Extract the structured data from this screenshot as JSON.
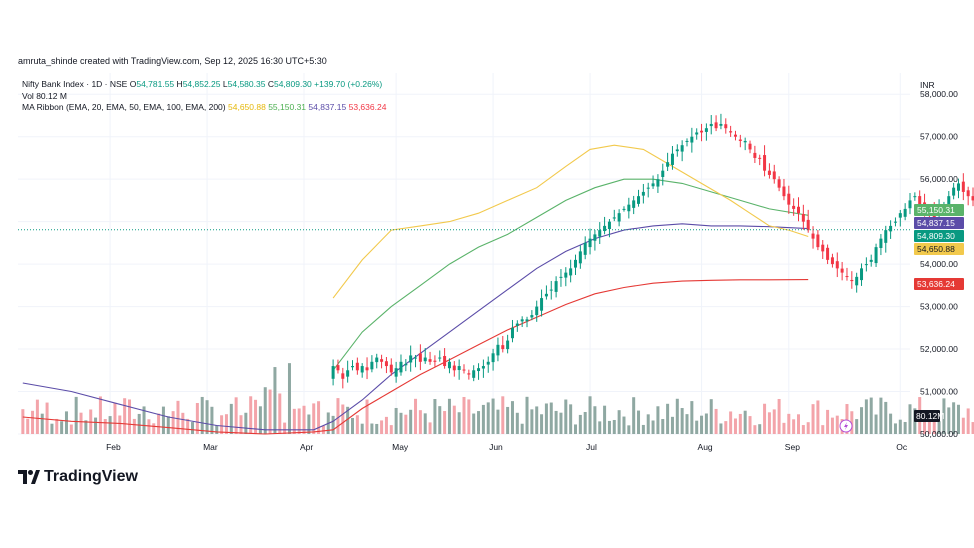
{
  "header": {
    "attribution": "amruta_shinde created with TradingView.com, Sep 12, 2025 16:30 UTC+5:30"
  },
  "legend": {
    "symbol": "Nifty Bank Index · 1D · NSE",
    "o_label": "O",
    "o_value": "54,781.55",
    "h_label": "H",
    "h_value": "54,852.25",
    "l_label": "L",
    "l_value": "54,580.35",
    "c_label": "C",
    "c_value": "54,809.30",
    "change": "+139.70 (+0.26%)",
    "volume_label": "Vol",
    "volume_value": "80.12 M",
    "ma_title": "MA Ribbon (EMA, 20, EMA, 50, EMA, 100, EMA, 200)",
    "ema20_value": "54,650.88",
    "ema50_value": "55,150.31",
    "ema100_value": "54,837.15",
    "ema200_value": "53,636.24"
  },
  "brand": {
    "name": "TradingView"
  },
  "colors": {
    "up": "#089981",
    "down": "#f23645",
    "vol_up": "#8fa8a2",
    "vol_down": "#f3a4aa",
    "ema20": "#f2c94c",
    "ema50": "#5ab36a",
    "ema100": "#5b4ca8",
    "ema200": "#e53935",
    "last_price_line": "#089981",
    "grid": "#f0f3fa",
    "axis_text": "#131722"
  },
  "chart_data": {
    "type": "candlestick",
    "title": "Nifty Bank Index · 1D · NSE",
    "currency": "INR",
    "ylim": [
      50000,
      58500
    ],
    "y_ticks": [
      50000,
      51000,
      52000,
      53000,
      54000,
      55000,
      56000,
      57000,
      58000
    ],
    "y_tick_labels": [
      "50,000.00",
      "51,000.00",
      "52,000.00",
      "53,000.00",
      "54,000.00",
      "55,000.00",
      "56,000.00",
      "57,000.00",
      "58,000.00"
    ],
    "x_ticks": [
      {
        "label": "Feb",
        "index": 18
      },
      {
        "label": "Mar",
        "index": 38
      },
      {
        "label": "Apr",
        "index": 58
      },
      {
        "label": "May",
        "index": 77
      },
      {
        "label": "Jun",
        "index": 97
      },
      {
        "label": "Jul",
        "index": 117
      },
      {
        "label": "Aug",
        "index": 140
      },
      {
        "label": "Sep",
        "index": 158
      },
      {
        "label": "Oc",
        "index": 181
      }
    ],
    "x_range": [
      -1,
      183
    ],
    "candles_start_index": 64,
    "closes": [
      51600,
      51500,
      51300,
      51500,
      51600,
      51500,
      51600,
      51500,
      51700,
      51800,
      51700,
      51600,
      51450,
      51550,
      51700,
      51650,
      51850,
      51800,
      51700,
      51800,
      51700,
      51700,
      51800,
      51600,
      51700,
      51500,
      51600,
      51500,
      51400,
      51500,
      51550,
      51600,
      51700,
      51900,
      52100,
      52000,
      52200,
      52500,
      52600,
      52700,
      52700,
      52800,
      53000,
      53200,
      53300,
      53400,
      53600,
      53700,
      53800,
      53900,
      54100,
      54300,
      54500,
      54600,
      54700,
      54800,
      54900,
      55000,
      55100,
      55200,
      55300,
      55400,
      55500,
      55600,
      55700,
      55800,
      55900,
      56000,
      56200,
      56400,
      56600,
      56700,
      56800,
      56900,
      57000,
      57100,
      57100,
      57200,
      57300,
      57200,
      57300,
      57200,
      57100,
      57000,
      56900,
      56900,
      56700,
      56500,
      56500,
      56200,
      56100,
      56000,
      55800,
      55600,
      55400,
      55300,
      55200,
      55000,
      54800,
      54600,
      54400,
      54300,
      54100,
      54000,
      53900,
      53800,
      53700,
      53600,
      53700,
      53900,
      54000,
      54100,
      54400,
      54600,
      54800,
      54900,
      55000,
      55200,
      55300,
      55500,
      55600,
      55400,
      55300,
      55200,
      55100,
      55300,
      55400,
      55600,
      55800,
      55900,
      55700,
      55600,
      55500,
      55200,
      55000,
      54700,
      54500,
      54200,
      54300,
      54400,
      54500,
      54600,
      54700,
      54800
    ],
    "ema20": [
      [
        64,
        53200
      ],
      [
        70,
        54100
      ],
      [
        76,
        54800
      ],
      [
        82,
        54900
      ],
      [
        88,
        55000
      ],
      [
        94,
        55200
      ],
      [
        100,
        55500
      ],
      [
        106,
        55800
      ],
      [
        112,
        56300
      ],
      [
        117,
        56700
      ],
      [
        122,
        56800
      ],
      [
        128,
        56700
      ],
      [
        134,
        56300
      ],
      [
        140,
        55900
      ],
      [
        146,
        55500
      ],
      [
        150,
        55200
      ],
      [
        154,
        54900
      ],
      [
        158,
        54800
      ],
      [
        162,
        54650
      ]
    ],
    "ema50": [
      [
        64,
        51500
      ],
      [
        70,
        52400
      ],
      [
        76,
        53000
      ],
      [
        82,
        53500
      ],
      [
        88,
        54000
      ],
      [
        94,
        54400
      ],
      [
        100,
        54700
      ],
      [
        106,
        55100
      ],
      [
        112,
        55500
      ],
      [
        118,
        55800
      ],
      [
        124,
        56000
      ],
      [
        130,
        56000
      ],
      [
        136,
        55900
      ],
      [
        142,
        55700
      ],
      [
        148,
        55500
      ],
      [
        154,
        55300
      ],
      [
        162,
        55150
      ]
    ],
    "ema100": [
      [
        0,
        51200
      ],
      [
        10,
        51000
      ],
      [
        20,
        50700
      ],
      [
        30,
        50400
      ],
      [
        40,
        50200
      ],
      [
        50,
        50100
      ],
      [
        60,
        50100
      ],
      [
        64,
        50300
      ],
      [
        70,
        50800
      ],
      [
        76,
        51400
      ],
      [
        82,
        51900
      ],
      [
        88,
        52400
      ],
      [
        94,
        52900
      ],
      [
        100,
        53400
      ],
      [
        106,
        53900
      ],
      [
        112,
        54300
      ],
      [
        118,
        54600
      ],
      [
        124,
        54800
      ],
      [
        130,
        54900
      ],
      [
        136,
        54950
      ],
      [
        142,
        54900
      ],
      [
        148,
        54900
      ],
      [
        154,
        54880
      ],
      [
        162,
        54837
      ]
    ],
    "ema200": [
      [
        0,
        50400
      ],
      [
        10,
        50300
      ],
      [
        20,
        50250
      ],
      [
        30,
        50150
      ],
      [
        40,
        50050
      ],
      [
        50,
        50000
      ],
      [
        60,
        50050
      ],
      [
        64,
        50100
      ],
      [
        70,
        50600
      ],
      [
        76,
        51000
      ],
      [
        82,
        51400
      ],
      [
        88,
        51750
      ],
      [
        94,
        52100
      ],
      [
        100,
        52450
      ],
      [
        106,
        52750
      ],
      [
        112,
        53050
      ],
      [
        118,
        53300
      ],
      [
        124,
        53450
      ],
      [
        130,
        53550
      ],
      [
        136,
        53600
      ],
      [
        142,
        53620
      ],
      [
        148,
        53630
      ],
      [
        154,
        53630
      ],
      [
        162,
        53636
      ]
    ],
    "volume_max_m": 550,
    "volume_last": 80.12
  }
}
